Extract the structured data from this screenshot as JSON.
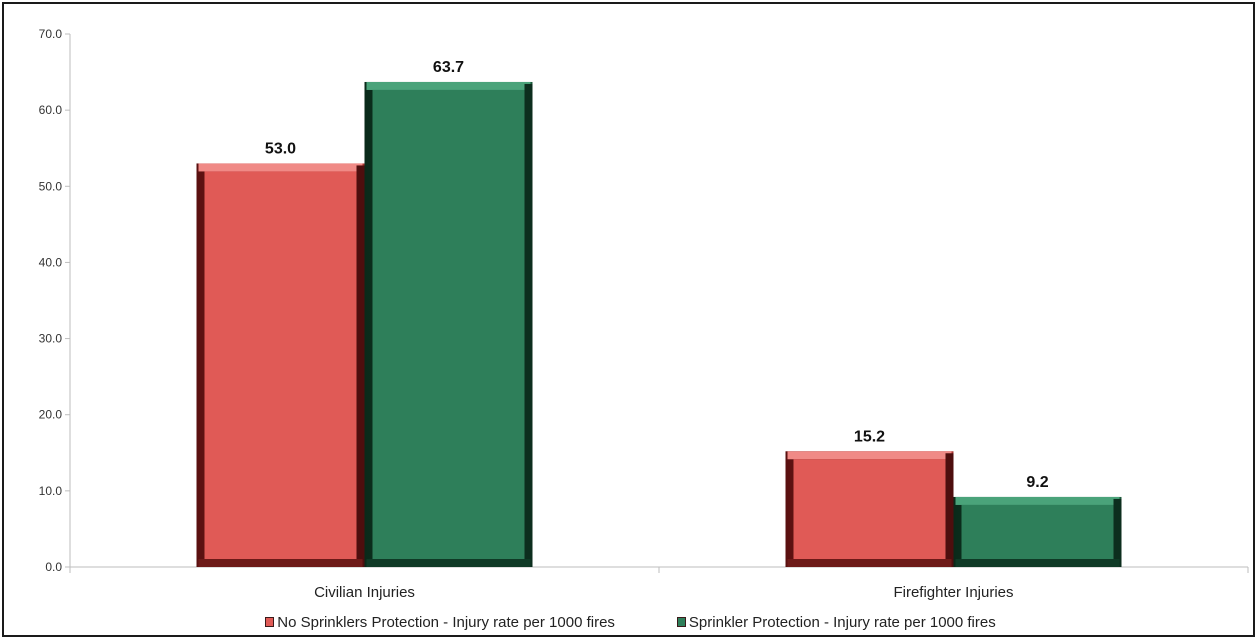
{
  "chart_data": {
    "type": "bar",
    "title": "",
    "xlabel": "",
    "ylabel": "",
    "categories": [
      "Civilian Injuries",
      "Firefighter Injuries"
    ],
    "series": [
      {
        "name": "No Sprinklers Protection - Injury rate per 1000 fires",
        "values": [
          53.0,
          15.2
        ],
        "color": "#e05a56"
      },
      {
        "name": "Sprinkler Protection - Injury rate per 1000 fires",
        "values": [
          63.7,
          9.2
        ],
        "color": "#2e7f5a"
      }
    ],
    "ylim": [
      0,
      70
    ],
    "yticks": [
      "0.0",
      "10.0",
      "20.0",
      "30.0",
      "40.0",
      "50.0",
      "60.0",
      "70.0"
    ],
    "data_labels": [
      [
        "53.0",
        "15.2"
      ],
      [
        "63.7",
        "9.2"
      ]
    ],
    "grid": false,
    "legend_position": "bottom"
  }
}
